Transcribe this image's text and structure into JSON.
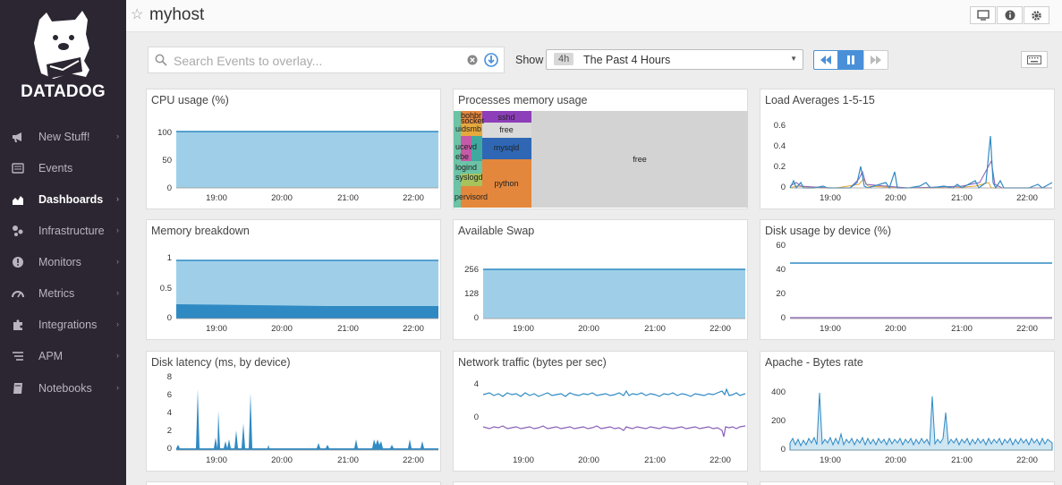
{
  "app": {
    "logo_text": "DATADOG",
    "title": "myhost",
    "accent_color": "#4a90d9",
    "sidebar_bg": "#2c2633"
  },
  "sidebar": {
    "items": [
      {
        "label": "New Stuff!",
        "icon": "megaphone-icon",
        "has_chevron": true
      },
      {
        "label": "Events",
        "icon": "events-list-icon",
        "has_chevron": false
      },
      {
        "label": "Dashboards",
        "icon": "area-chart-icon",
        "has_chevron": true,
        "active": true
      },
      {
        "label": "Infrastructure",
        "icon": "network-nodes-icon",
        "has_chevron": true
      },
      {
        "label": "Monitors",
        "icon": "alert-circle-icon",
        "has_chevron": true
      },
      {
        "label": "Metrics",
        "icon": "gauge-icon",
        "has_chevron": true
      },
      {
        "label": "Integrations",
        "icon": "puzzle-icon",
        "has_chevron": true
      },
      {
        "label": "APM",
        "icon": "list-lines-icon",
        "has_chevron": true
      },
      {
        "label": "Notebooks",
        "icon": "notebook-icon",
        "has_chevron": true
      }
    ]
  },
  "header": {
    "buttons": [
      "tv-mode-icon",
      "info-icon",
      "settings-gear-icon"
    ]
  },
  "toolbar": {
    "search_placeholder": "Search Events to overlay...",
    "show_label": "Show",
    "timeframe_short": "4h",
    "timeframe_long": "The Past 4 Hours"
  },
  "x_ticks": [
    "19:00",
    "20:00",
    "21:00",
    "22:00"
  ],
  "widgets": [
    {
      "title": "CPU usage (%)",
      "yticks": [
        "100",
        "50",
        "0"
      ]
    },
    {
      "title": "Processes memory usage",
      "treemap": [
        "sshd",
        "free",
        "mysqld",
        "python",
        "free",
        "socket",
        "uidsmb",
        "bohbr",
        "ucevd",
        "ebe",
        "logind",
        "syslogd",
        "pervisord"
      ]
    },
    {
      "title": "Load Averages 1-5-15",
      "yticks": [
        "0.6",
        "0.4",
        "0.2",
        "0"
      ]
    },
    {
      "title": "Memory breakdown",
      "yticks": [
        "1",
        "0.5",
        "0"
      ]
    },
    {
      "title": "Available Swap",
      "yticks": [
        "256",
        "128",
        "0"
      ]
    },
    {
      "title": "Disk usage by device (%)",
      "yticks": [
        "60",
        "40",
        "20",
        "0"
      ]
    },
    {
      "title": "Disk latency (ms, by device)",
      "yticks": [
        "8",
        "6",
        "4",
        "2",
        "0"
      ]
    },
    {
      "title": "Network traffic (bytes per sec)",
      "yticks": [
        "4",
        "0"
      ]
    },
    {
      "title": "Apache - Bytes rate",
      "yticks": [
        "400",
        "200",
        "0"
      ]
    }
  ]
}
